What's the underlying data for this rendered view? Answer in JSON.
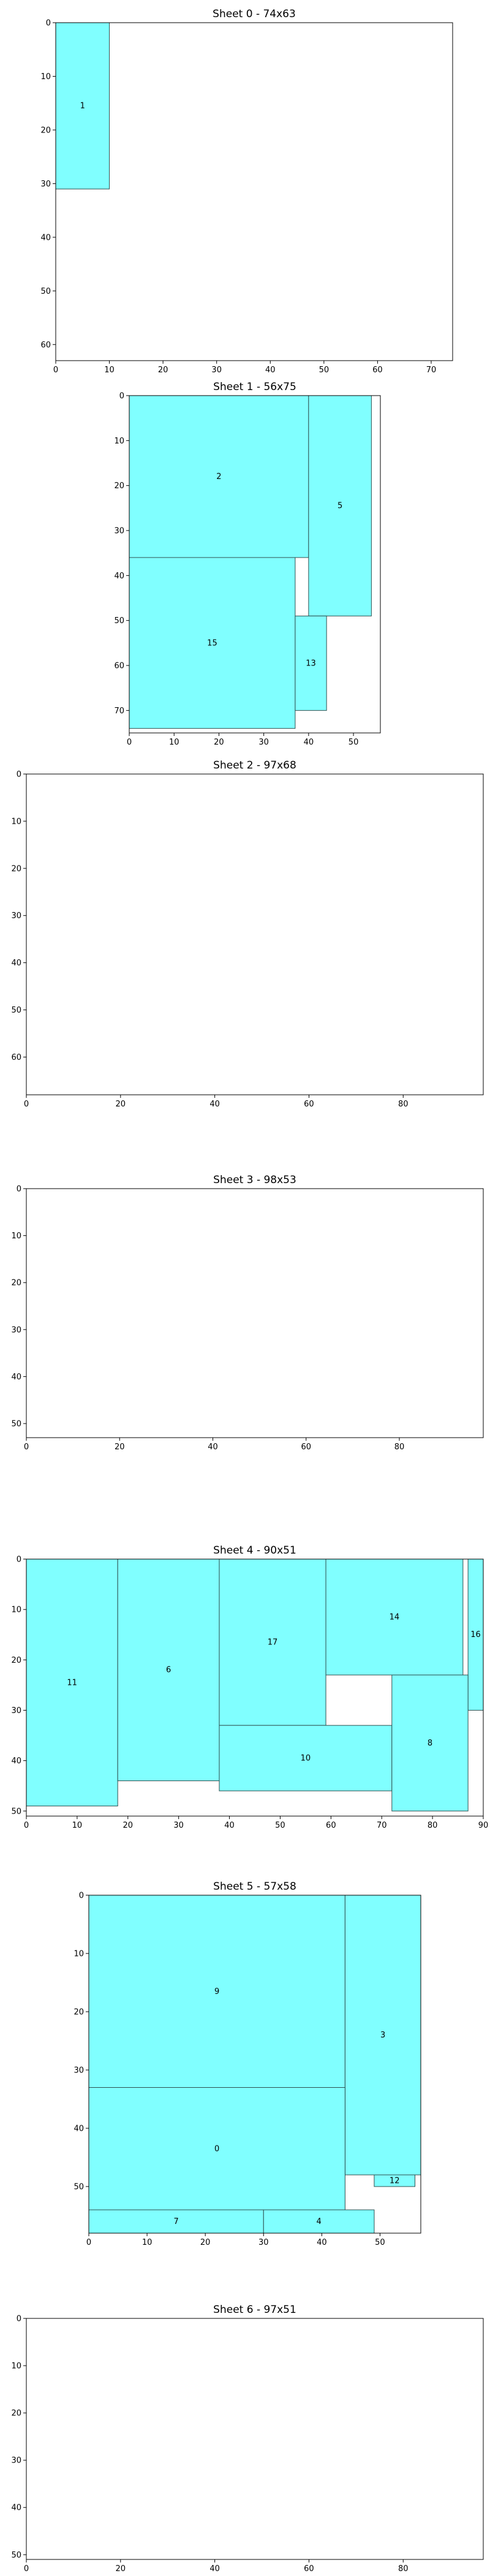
{
  "chart_data": [
    {
      "type": "bar",
      "title": "Sheet 0 - 74x63",
      "xlim": [
        0,
        74
      ],
      "ylim": [
        0,
        63
      ],
      "y_inverted": true,
      "xticks": [
        0,
        10,
        20,
        30,
        40,
        50,
        60,
        70
      ],
      "yticks": [
        0,
        10,
        20,
        30,
        40,
        50,
        60
      ],
      "grid": false,
      "fill_color": "#80ffff",
      "rects": [
        {
          "label": "1",
          "x": 0,
          "y": 0,
          "w": 10,
          "h": 31
        }
      ]
    },
    {
      "type": "bar",
      "title": "Sheet 1 - 56x75",
      "xlim": [
        0,
        56
      ],
      "ylim": [
        0,
        75
      ],
      "y_inverted": true,
      "xticks": [
        0,
        10,
        20,
        30,
        40,
        50
      ],
      "yticks": [
        0,
        10,
        20,
        30,
        40,
        50,
        60,
        70
      ],
      "grid": false,
      "fill_color": "#80ffff",
      "rects": [
        {
          "label": "2",
          "x": 0,
          "y": 0,
          "w": 40,
          "h": 36
        },
        {
          "label": "5",
          "x": 40,
          "y": 0,
          "w": 14,
          "h": 49
        },
        {
          "label": "15",
          "x": 0,
          "y": 36,
          "w": 37,
          "h": 38
        },
        {
          "label": "13",
          "x": 37,
          "y": 49,
          "w": 7,
          "h": 21
        }
      ]
    },
    {
      "type": "bar",
      "title": "Sheet 2 - 97x68",
      "xlim": [
        0,
        97
      ],
      "ylim": [
        0,
        68
      ],
      "y_inverted": true,
      "xticks": [
        0,
        20,
        40,
        60,
        80
      ],
      "yticks": [
        0,
        10,
        20,
        30,
        40,
        50,
        60
      ],
      "grid": false,
      "fill_color": "#80ffff",
      "rects": []
    },
    {
      "type": "bar",
      "title": "Sheet 3 - 98x53",
      "xlim": [
        0,
        98
      ],
      "ylim": [
        0,
        53
      ],
      "y_inverted": true,
      "xticks": [
        0,
        20,
        40,
        60,
        80
      ],
      "yticks": [
        0,
        10,
        20,
        30,
        40,
        50
      ],
      "grid": false,
      "fill_color": "#80ffff",
      "rects": []
    },
    {
      "type": "bar",
      "title": "Sheet 4 - 90x51",
      "xlim": [
        0,
        90
      ],
      "ylim": [
        0,
        51
      ],
      "y_inverted": true,
      "xticks": [
        0,
        10,
        20,
        30,
        40,
        50,
        60,
        70,
        80,
        90
      ],
      "yticks": [
        0,
        10,
        20,
        30,
        40,
        50
      ],
      "grid": false,
      "fill_color": "#80ffff",
      "rects": [
        {
          "label": "11",
          "x": 0,
          "y": 0,
          "w": 18,
          "h": 49
        },
        {
          "label": "6",
          "x": 18,
          "y": 0,
          "w": 20,
          "h": 44
        },
        {
          "label": "17",
          "x": 38,
          "y": 0,
          "w": 21,
          "h": 33
        },
        {
          "label": "14",
          "x": 59,
          "y": 0,
          "w": 27,
          "h": 23
        },
        {
          "label": "16",
          "x": 87,
          "y": 0,
          "w": 3,
          "h": 30
        },
        {
          "label": "10",
          "x": 38,
          "y": 33,
          "w": 34,
          "h": 13
        },
        {
          "label": "8",
          "x": 72,
          "y": 23,
          "w": 15,
          "h": 27
        }
      ]
    },
    {
      "type": "bar",
      "title": "Sheet 5 - 57x58",
      "xlim": [
        0,
        57
      ],
      "ylim": [
        0,
        58
      ],
      "y_inverted": true,
      "xticks": [
        0,
        10,
        20,
        30,
        40,
        50
      ],
      "yticks": [
        0,
        10,
        20,
        30,
        40,
        50
      ],
      "grid": false,
      "fill_color": "#80ffff",
      "rects": [
        {
          "label": "9",
          "x": 0,
          "y": 0,
          "w": 44,
          "h": 33
        },
        {
          "label": "3",
          "x": 44,
          "y": 0,
          "w": 13,
          "h": 48
        },
        {
          "label": "0",
          "x": 0,
          "y": 33,
          "w": 44,
          "h": 21
        },
        {
          "label": "12",
          "x": 49,
          "y": 48,
          "w": 7,
          "h": 2
        },
        {
          "label": "7",
          "x": 0,
          "y": 54,
          "w": 30,
          "h": 4
        },
        {
          "label": "4",
          "x": 30,
          "y": 54,
          "w": 19,
          "h": 4
        }
      ]
    },
    {
      "type": "bar",
      "title": "Sheet 6 - 97x51",
      "xlim": [
        0,
        97
      ],
      "ylim": [
        0,
        51
      ],
      "y_inverted": true,
      "xticks": [
        0,
        20,
        40,
        60,
        80
      ],
      "yticks": [
        0,
        10,
        20,
        30,
        40,
        50
      ],
      "grid": false,
      "fill_color": "#80ffff",
      "rects": []
    }
  ]
}
